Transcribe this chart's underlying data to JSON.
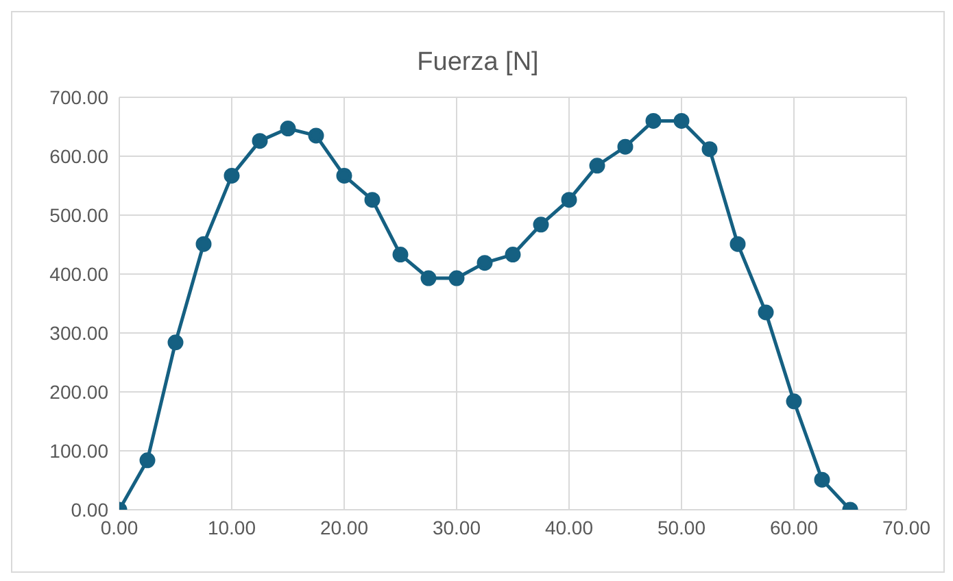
{
  "chart_data": {
    "type": "line",
    "title": "Fuerza [N]",
    "x": [
      0,
      2.5,
      5,
      7.5,
      10,
      12.5,
      15,
      17.5,
      20,
      22.5,
      25,
      27.5,
      30,
      32.5,
      35,
      37.5,
      40,
      42.5,
      45,
      47.5,
      50,
      52.5,
      55,
      57.5,
      60,
      62.5,
      65
    ],
    "series": [
      {
        "color": "#156082",
        "values": [
          0,
          84,
          284,
          451,
          567,
          626,
          647,
          635,
          567,
          526,
          433,
          393,
          393,
          419,
          433,
          484,
          526,
          584,
          616,
          660,
          660,
          612,
          451,
          335,
          184,
          51,
          0
        ]
      }
    ],
    "xlim": [
      0,
      70
    ],
    "xticks": [
      {
        "value": 0,
        "label": "0.00"
      },
      {
        "value": 10,
        "label": "10.00"
      },
      {
        "value": 20,
        "label": "20.00"
      },
      {
        "value": 30,
        "label": "30.00"
      },
      {
        "value": 40,
        "label": "40.00"
      },
      {
        "value": 50,
        "label": "50.00"
      },
      {
        "value": 60,
        "label": "60.00"
      },
      {
        "value": 70,
        "label": "70.00"
      }
    ],
    "ylim": [
      0,
      700
    ],
    "yticks": [
      {
        "value": 0,
        "label": "0.00"
      },
      {
        "value": 100,
        "label": "100.00"
      },
      {
        "value": 200,
        "label": "200.00"
      },
      {
        "value": 300,
        "label": "300.00"
      },
      {
        "value": 400,
        "label": "400.00"
      },
      {
        "value": 500,
        "label": "500.00"
      },
      {
        "value": 600,
        "label": "600.00"
      },
      {
        "value": 700,
        "label": "700.00"
      }
    ],
    "grid": true,
    "legend": false,
    "marker": "circle",
    "line_style": "solid"
  }
}
